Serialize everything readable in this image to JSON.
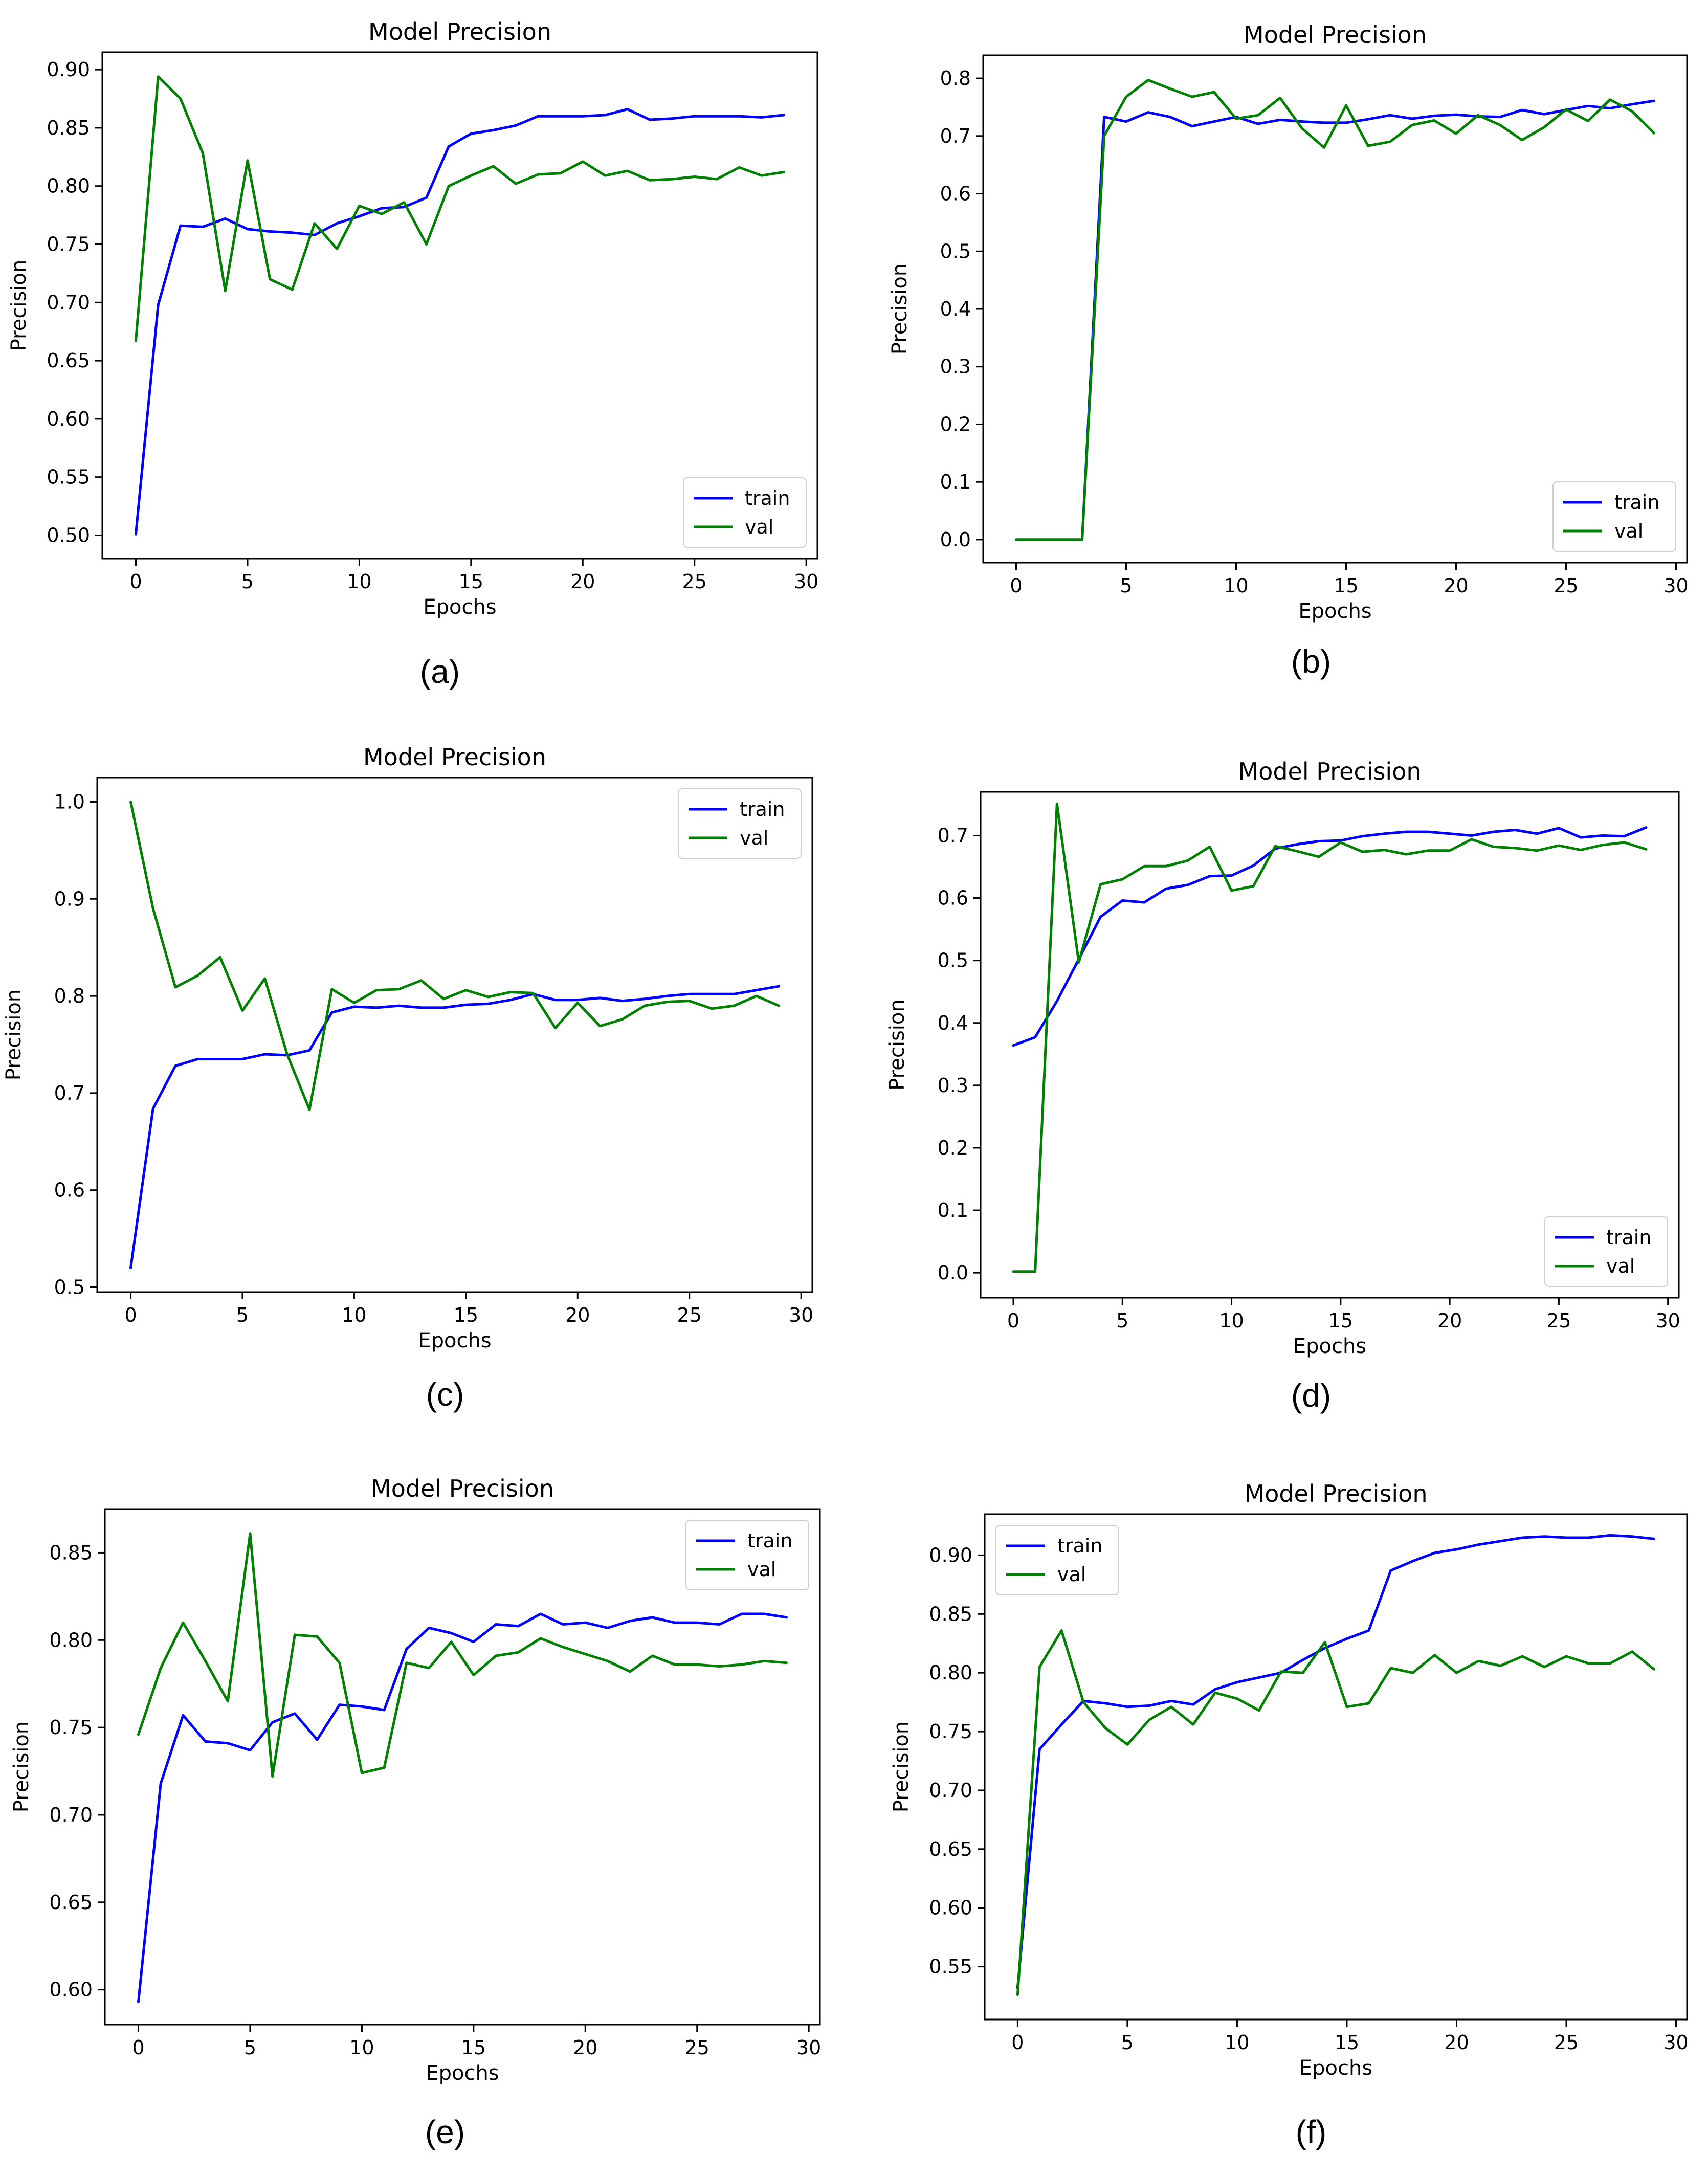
{
  "colors": {
    "train": "#0000ff",
    "val": "#008000",
    "axis": "#000000"
  },
  "chart_data": [
    {
      "id": "a",
      "type": "line",
      "title": "Model Precision",
      "xlabel": "Epochs",
      "ylabel": "Precision",
      "caption": "(a)",
      "legend_position": "lower-right",
      "xlim": [
        -1.5,
        30.5
      ],
      "ylim": [
        0.48,
        0.915
      ],
      "xticks": [
        0,
        5,
        10,
        15,
        20,
        25,
        30
      ],
      "xtick_labels": [
        "0",
        "5",
        "10",
        "15",
        "20",
        "25",
        "30"
      ],
      "yticks": [
        0.5,
        0.55,
        0.6,
        0.65,
        0.7,
        0.75,
        0.8,
        0.85,
        0.9
      ],
      "ytick_labels": [
        "0.50",
        "0.55",
        "0.60",
        "0.65",
        "0.70",
        "0.75",
        "0.80",
        "0.85",
        "0.90"
      ],
      "x": [
        0,
        1,
        2,
        3,
        4,
        5,
        6,
        7,
        8,
        9,
        10,
        11,
        12,
        13,
        14,
        15,
        16,
        17,
        18,
        19,
        20,
        21,
        22,
        23,
        24,
        25,
        26,
        27,
        28,
        29
      ],
      "series": [
        {
          "name": "train",
          "color": "#0000ff",
          "values": [
            0.501,
            0.698,
            0.766,
            0.765,
            0.772,
            0.763,
            0.761,
            0.76,
            0.758,
            0.768,
            0.774,
            0.781,
            0.782,
            0.79,
            0.834,
            0.845,
            0.848,
            0.852,
            0.86,
            0.86,
            0.86,
            0.861,
            0.866,
            0.857,
            0.858,
            0.86,
            0.86,
            0.86,
            0.859,
            0.861
          ]
        },
        {
          "name": "val",
          "color": "#008000",
          "values": [
            0.667,
            0.894,
            0.875,
            0.828,
            0.71,
            0.822,
            0.72,
            0.711,
            0.768,
            0.746,
            0.783,
            0.776,
            0.786,
            0.75,
            0.8,
            0.809,
            0.817,
            0.802,
            0.81,
            0.811,
            0.821,
            0.809,
            0.813,
            0.805,
            0.806,
            0.808,
            0.806,
            0.816,
            0.809,
            0.812
          ]
        }
      ]
    },
    {
      "id": "b",
      "type": "line",
      "title": "Model Precision",
      "xlabel": "Epochs",
      "ylabel": "Precision",
      "caption": "(b)",
      "legend_position": "lower-right",
      "xlim": [
        -1.5,
        30.5
      ],
      "ylim": [
        -0.04,
        0.84
      ],
      "xticks": [
        0,
        5,
        10,
        15,
        20,
        25,
        30
      ],
      "xtick_labels": [
        "0",
        "5",
        "10",
        "15",
        "20",
        "25",
        "30"
      ],
      "yticks": [
        0.0,
        0.1,
        0.2,
        0.3,
        0.4,
        0.5,
        0.6,
        0.7,
        0.8
      ],
      "ytick_labels": [
        "0.0",
        "0.1",
        "0.2",
        "0.3",
        "0.4",
        "0.5",
        "0.6",
        "0.7",
        "0.8"
      ],
      "x": [
        0,
        1,
        2,
        3,
        4,
        5,
        6,
        7,
        8,
        9,
        10,
        11,
        12,
        13,
        14,
        15,
        16,
        17,
        18,
        19,
        20,
        21,
        22,
        23,
        24,
        25,
        26,
        27,
        28,
        29
      ],
      "series": [
        {
          "name": "train",
          "color": "#0000ff",
          "values": [
            0,
            0,
            0,
            0,
            0.733,
            0.725,
            0.741,
            0.733,
            0.717,
            0.725,
            0.733,
            0.721,
            0.728,
            0.725,
            0.723,
            0.723,
            0.729,
            0.736,
            0.73,
            0.735,
            0.737,
            0.734,
            0.733,
            0.745,
            0.738,
            0.745,
            0.752,
            0.748,
            0.755,
            0.761
          ]
        },
        {
          "name": "val",
          "color": "#008000",
          "values": [
            0,
            0,
            0,
            0,
            0.7,
            0.768,
            0.797,
            0.782,
            0.768,
            0.776,
            0.73,
            0.736,
            0.766,
            0.713,
            0.68,
            0.753,
            0.683,
            0.69,
            0.719,
            0.727,
            0.704,
            0.736,
            0.719,
            0.693,
            0.715,
            0.746,
            0.726,
            0.763,
            0.743,
            0.705
          ]
        }
      ]
    },
    {
      "id": "c",
      "type": "line",
      "title": "Model Precision",
      "xlabel": "Epochs",
      "ylabel": "Precision",
      "caption": "(c)",
      "legend_position": "top-right",
      "xlim": [
        -1.5,
        30.5
      ],
      "ylim": [
        0.495,
        1.025
      ],
      "xticks": [
        0,
        5,
        10,
        15,
        20,
        25,
        30
      ],
      "xtick_labels": [
        "0",
        "5",
        "10",
        "15",
        "20",
        "25",
        "30"
      ],
      "yticks": [
        0.5,
        0.6,
        0.7,
        0.8,
        0.9,
        1.0
      ],
      "ytick_labels": [
        "0.5",
        "0.6",
        "0.7",
        "0.8",
        "0.9",
        "1.0"
      ],
      "x": [
        0,
        1,
        2,
        3,
        4,
        5,
        6,
        7,
        8,
        9,
        10,
        11,
        12,
        13,
        14,
        15,
        16,
        17,
        18,
        19,
        20,
        21,
        22,
        23,
        24,
        25,
        26,
        27,
        28,
        29
      ],
      "series": [
        {
          "name": "train",
          "color": "#0000ff",
          "values": [
            0.52,
            0.684,
            0.728,
            0.735,
            0.735,
            0.735,
            0.74,
            0.739,
            0.744,
            0.783,
            0.789,
            0.788,
            0.79,
            0.788,
            0.788,
            0.791,
            0.792,
            0.796,
            0.802,
            0.796,
            0.796,
            0.798,
            0.795,
            0.797,
            0.8,
            0.802,
            0.802,
            0.802,
            0.806,
            0.81
          ]
        },
        {
          "name": "val",
          "color": "#008000",
          "values": [
            1.0,
            0.89,
            0.809,
            0.821,
            0.84,
            0.785,
            0.818,
            0.74,
            0.683,
            0.807,
            0.793,
            0.806,
            0.807,
            0.816,
            0.797,
            0.806,
            0.799,
            0.804,
            0.803,
            0.767,
            0.793,
            0.769,
            0.776,
            0.79,
            0.794,
            0.795,
            0.787,
            0.79,
            0.8,
            0.79
          ]
        }
      ]
    },
    {
      "id": "d",
      "type": "line",
      "title": "Model Precision",
      "xlabel": "Epochs",
      "ylabel": "Precision",
      "caption": "(d)",
      "legend_position": "lower-right",
      "xlim": [
        -1.5,
        30.5
      ],
      "ylim": [
        -0.04,
        0.77
      ],
      "xticks": [
        0,
        5,
        10,
        15,
        20,
        25,
        30
      ],
      "xtick_labels": [
        "0",
        "5",
        "10",
        "15",
        "20",
        "25",
        "30"
      ],
      "yticks": [
        0.0,
        0.1,
        0.2,
        0.3,
        0.4,
        0.5,
        0.6,
        0.7
      ],
      "ytick_labels": [
        "0.0",
        "0.1",
        "0.2",
        "0.3",
        "0.4",
        "0.5",
        "0.6",
        "0.7"
      ],
      "x": [
        0,
        1,
        2,
        3,
        4,
        5,
        6,
        7,
        8,
        9,
        10,
        11,
        12,
        13,
        14,
        15,
        16,
        17,
        18,
        19,
        20,
        21,
        22,
        23,
        24,
        25,
        26,
        27,
        28,
        29
      ],
      "series": [
        {
          "name": "train",
          "color": "#0000ff",
          "values": [
            0.364,
            0.377,
            0.435,
            0.502,
            0.57,
            0.596,
            0.593,
            0.615,
            0.621,
            0.635,
            0.636,
            0.652,
            0.679,
            0.686,
            0.691,
            0.692,
            0.699,
            0.703,
            0.706,
            0.706,
            0.703,
            0.7,
            0.706,
            0.709,
            0.703,
            0.712,
            0.697,
            0.7,
            0.699,
            0.713
          ]
        },
        {
          "name": "val",
          "color": "#008000",
          "values": [
            0.002,
            0.002,
            0.751,
            0.497,
            0.622,
            0.63,
            0.651,
            0.651,
            0.66,
            0.682,
            0.612,
            0.619,
            0.683,
            0.675,
            0.666,
            0.689,
            0.674,
            0.677,
            0.67,
            0.676,
            0.676,
            0.694,
            0.682,
            0.68,
            0.676,
            0.684,
            0.677,
            0.685,
            0.689,
            0.678
          ]
        }
      ]
    },
    {
      "id": "e",
      "type": "line",
      "title": "Model Precision",
      "xlabel": "Epochs",
      "ylabel": "Precision",
      "caption": "(e)",
      "legend_position": "top-right",
      "xlim": [
        -1.5,
        30.5
      ],
      "ylim": [
        0.58,
        0.875
      ],
      "xticks": [
        0,
        5,
        10,
        15,
        20,
        25,
        30
      ],
      "xtick_labels": [
        "0",
        "5",
        "10",
        "15",
        "20",
        "25",
        "30"
      ],
      "yticks": [
        0.6,
        0.65,
        0.7,
        0.75,
        0.8,
        0.85
      ],
      "ytick_labels": [
        "0.60",
        "0.65",
        "0.70",
        "0.75",
        "0.80",
        "0.85"
      ],
      "x": [
        0,
        1,
        2,
        3,
        4,
        5,
        6,
        7,
        8,
        9,
        10,
        11,
        12,
        13,
        14,
        15,
        16,
        17,
        18,
        19,
        20,
        21,
        22,
        23,
        24,
        25,
        26,
        27,
        28,
        29
      ],
      "series": [
        {
          "name": "train",
          "color": "#0000ff",
          "values": [
            0.593,
            0.718,
            0.757,
            0.742,
            0.741,
            0.737,
            0.753,
            0.758,
            0.743,
            0.763,
            0.762,
            0.76,
            0.795,
            0.807,
            0.804,
            0.799,
            0.809,
            0.808,
            0.815,
            0.809,
            0.81,
            0.807,
            0.811,
            0.813,
            0.81,
            0.81,
            0.809,
            0.815,
            0.815,
            0.813
          ]
        },
        {
          "name": "val",
          "color": "#008000",
          "values": [
            0.746,
            0.784,
            0.81,
            0.788,
            0.765,
            0.861,
            0.722,
            0.803,
            0.802,
            0.787,
            0.724,
            0.727,
            0.787,
            0.784,
            0.799,
            0.78,
            0.791,
            0.793,
            0.801,
            0.796,
            0.792,
            0.788,
            0.782,
            0.791,
            0.786,
            0.786,
            0.785,
            0.786,
            0.788,
            0.787
          ]
        }
      ]
    },
    {
      "id": "f",
      "type": "line",
      "title": "Model Precision",
      "xlabel": "Epochs",
      "ylabel": "Precision",
      "caption": "(f)",
      "legend_position": "top-left",
      "xlim": [
        -1.5,
        30.5
      ],
      "ylim": [
        0.505,
        0.935
      ],
      "xticks": [
        0,
        5,
        10,
        15,
        20,
        25,
        30
      ],
      "xtick_labels": [
        "0",
        "5",
        "10",
        "15",
        "20",
        "25",
        "30"
      ],
      "yticks": [
        0.55,
        0.6,
        0.65,
        0.7,
        0.75,
        0.8,
        0.85,
        0.9
      ],
      "ytick_labels": [
        "0.55",
        "0.60",
        "0.65",
        "0.70",
        "0.75",
        "0.80",
        "0.85",
        "0.90"
      ],
      "x": [
        0,
        1,
        2,
        3,
        4,
        5,
        6,
        7,
        8,
        9,
        10,
        11,
        12,
        13,
        14,
        15,
        16,
        17,
        18,
        19,
        20,
        21,
        22,
        23,
        24,
        25,
        26,
        27,
        28,
        29
      ],
      "series": [
        {
          "name": "train",
          "color": "#0000ff",
          "values": [
            0.532,
            0.735,
            0.756,
            0.776,
            0.774,
            0.771,
            0.772,
            0.776,
            0.773,
            0.786,
            0.792,
            0.796,
            0.8,
            0.811,
            0.821,
            0.829,
            0.836,
            0.887,
            0.895,
            0.902,
            0.905,
            0.909,
            0.912,
            0.915,
            0.916,
            0.915,
            0.915,
            0.917,
            0.916,
            0.914
          ]
        },
        {
          "name": "val",
          "color": "#008000",
          "values": [
            0.526,
            0.805,
            0.836,
            0.775,
            0.753,
            0.739,
            0.76,
            0.771,
            0.756,
            0.783,
            0.778,
            0.768,
            0.801,
            0.8,
            0.826,
            0.771,
            0.774,
            0.804,
            0.8,
            0.815,
            0.8,
            0.81,
            0.806,
            0.814,
            0.805,
            0.814,
            0.808,
            0.808,
            0.818,
            0.803
          ]
        }
      ]
    }
  ]
}
